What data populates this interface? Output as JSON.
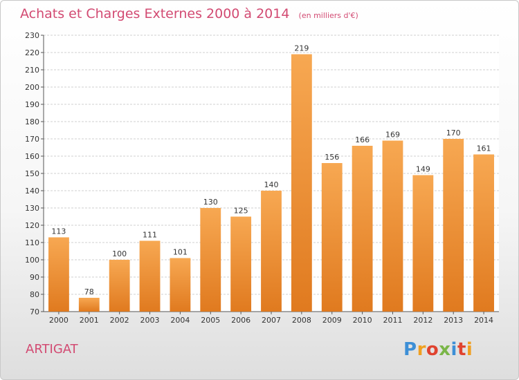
{
  "header": {
    "title": "Achats et Charges Externes 2000 à 2014",
    "unit": "(en milliers d'€)"
  },
  "footer": {
    "place": "ARTIGAT",
    "logo_letters": [
      "P",
      "r",
      "o",
      "x",
      "i",
      "t",
      "i"
    ],
    "logo_colors": [
      "#3d8fd6",
      "#f0a020",
      "#e0432f",
      "#7ab648",
      "#3d8fd6",
      "#e0432f",
      "#f0a020"
    ]
  },
  "chart_data": {
    "type": "bar",
    "title": "Achats et Charges Externes 2000 à 2014",
    "xlabel": "",
    "ylabel": "",
    "categories": [
      "2000",
      "2001",
      "2002",
      "2003",
      "2004",
      "2005",
      "2006",
      "2007",
      "2008",
      "2009",
      "2010",
      "2011",
      "2012",
      "2013",
      "2014"
    ],
    "values": [
      113,
      78,
      100,
      111,
      101,
      130,
      125,
      140,
      219,
      156,
      166,
      169,
      149,
      170,
      161
    ],
    "ylim": [
      70,
      230
    ],
    "ytick_step": 10,
    "grid": true,
    "bar_color_top": "#f7a852",
    "bar_color_bottom": "#e07a1f"
  }
}
